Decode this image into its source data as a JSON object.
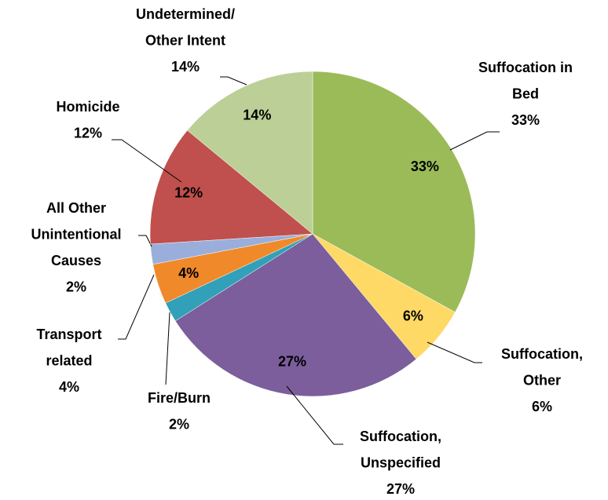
{
  "chart_data": {
    "type": "pie",
    "categories": [
      "Suffocation in\nBed",
      "Suffocation,\nOther",
      "Suffocation,\nUnspecified",
      "Fire/Burn",
      "Transport\nrelated",
      "All Other\nUnintentional\nCauses",
      "Homicide",
      "Undetermined/\nOther Intent"
    ],
    "values": [
      33,
      6,
      27,
      2,
      4,
      2,
      12,
      14
    ],
    "value_labels": [
      "33%",
      "6%",
      "27%",
      "2%",
      "4%",
      "2%",
      "12%",
      "14%"
    ],
    "colors": [
      "#9bbb59",
      "#ffd966",
      "#7b5e9b",
      "#31a0b8",
      "#f0892a",
      "#9aaedb",
      "#c0504d",
      "#bccf96"
    ]
  }
}
